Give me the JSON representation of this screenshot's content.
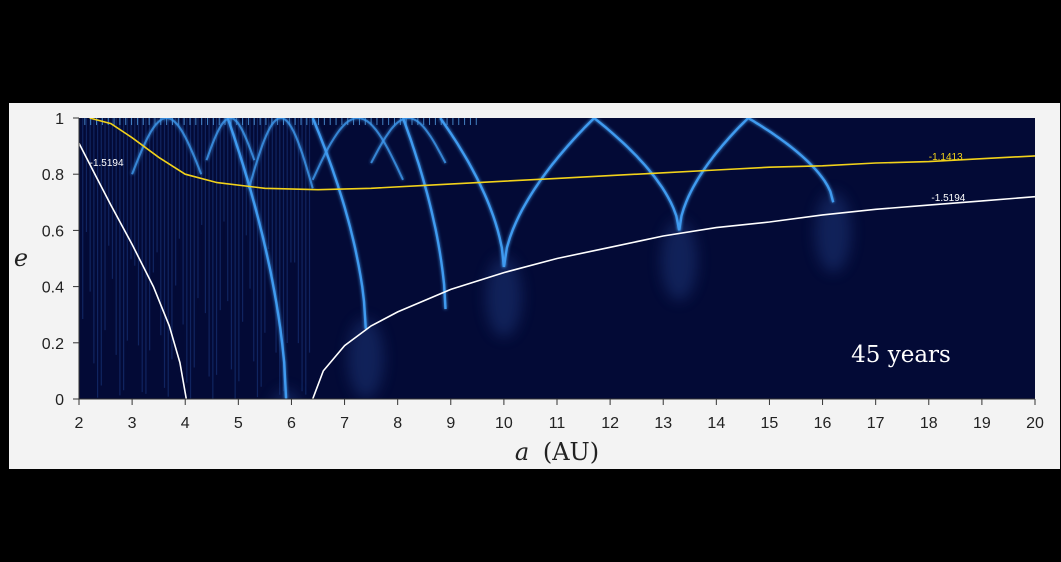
{
  "chart_data": {
    "type": "heatmap",
    "title": "",
    "xlabel_symbol": "a",
    "xlabel_unit": "(AU)",
    "ylabel": "e",
    "xlim": [
      2,
      20
    ],
    "ylim": [
      0,
      1
    ],
    "x_ticks": [
      "2",
      "3",
      "4",
      "5",
      "6",
      "7",
      "8",
      "9",
      "10",
      "11",
      "12",
      "13",
      "14",
      "15",
      "16",
      "17",
      "18",
      "19",
      "20"
    ],
    "y_ticks": [
      "0",
      "0.2",
      "0.4",
      "0.6",
      "0.8",
      "1"
    ],
    "annotation": "45 years",
    "colors": {
      "background": "#030a36",
      "resonance": "#3f9bf0",
      "contour_white": "#ffffff",
      "contour_yellow": "#f2d21a"
    },
    "contours": [
      {
        "label": "-1.5194",
        "color": "white",
        "points": [
          [
            2.0,
            0.91
          ],
          [
            2.3,
            0.8
          ],
          [
            2.6,
            0.69
          ],
          [
            3.0,
            0.55
          ],
          [
            3.4,
            0.4
          ],
          [
            3.7,
            0.26
          ],
          [
            3.9,
            0.13
          ],
          [
            4.02,
            0.0
          ]
        ]
      },
      {
        "label": "-1.5194",
        "color": "white",
        "points": [
          [
            6.4,
            0.0
          ],
          [
            6.6,
            0.1
          ],
          [
            7.0,
            0.19
          ],
          [
            7.5,
            0.26
          ],
          [
            8.0,
            0.31
          ],
          [
            9.0,
            0.39
          ],
          [
            10.0,
            0.45
          ],
          [
            11.0,
            0.5
          ],
          [
            12.0,
            0.54
          ],
          [
            13.0,
            0.58
          ],
          [
            14.0,
            0.61
          ],
          [
            15.0,
            0.63
          ],
          [
            16.0,
            0.655
          ],
          [
            17.0,
            0.675
          ],
          [
            18.0,
            0.69
          ],
          [
            19.0,
            0.705
          ],
          [
            20.0,
            0.72
          ]
        ]
      },
      {
        "label": "-1.1413",
        "color": "yellow",
        "points": [
          [
            2.2,
            1.0
          ],
          [
            2.6,
            0.98
          ],
          [
            3.0,
            0.93
          ],
          [
            3.5,
            0.86
          ],
          [
            4.0,
            0.8
          ],
          [
            4.6,
            0.77
          ],
          [
            5.5,
            0.75
          ],
          [
            6.5,
            0.745
          ],
          [
            7.5,
            0.75
          ],
          [
            8.5,
            0.76
          ],
          [
            10.0,
            0.775
          ],
          [
            11.0,
            0.785
          ],
          [
            12.0,
            0.795
          ],
          [
            13.0,
            0.805
          ],
          [
            14.0,
            0.815
          ],
          [
            15.0,
            0.825
          ],
          [
            16.0,
            0.83
          ],
          [
            17.0,
            0.84
          ],
          [
            18.0,
            0.845
          ],
          [
            19.0,
            0.855
          ],
          [
            20.0,
            0.865
          ]
        ]
      }
    ],
    "contour_label_positions": [
      {
        "text": "-1.5194",
        "a": 2.2,
        "e": 0.83
      },
      {
        "text": "-1.5194",
        "a": 18.05,
        "e": 0.705
      },
      {
        "text": "-1.1413",
        "a": 18.0,
        "e": 0.85
      }
    ],
    "resonance_ridges": [
      {
        "vertex": [
          5.9,
          0.0
        ],
        "peak": [
          4.8,
          1.0
        ]
      },
      {
        "vertex": [
          7.4,
          0.25
        ],
        "peak": [
          6.4,
          1.0
        ]
      },
      {
        "vertex": [
          8.9,
          0.32
        ],
        "peak": [
          8.1,
          1.0
        ]
      },
      {
        "vertex": [
          10.0,
          0.47
        ],
        "peak": [
          8.8,
          1.0
        ]
      },
      {
        "vertex": [
          10.0,
          0.47
        ],
        "peak": [
          11.7,
          1.0
        ]
      },
      {
        "vertex": [
          13.3,
          0.6
        ],
        "peak": [
          11.7,
          1.0
        ]
      },
      {
        "vertex": [
          13.3,
          0.6
        ],
        "peak": [
          14.6,
          1.0
        ]
      },
      {
        "vertex": [
          16.2,
          0.7
        ],
        "peak": [
          14.6,
          1.0
        ]
      }
    ],
    "resonance_arches": [
      {
        "x1": 5.2,
        "x2": 6.4,
        "e_base": 0.75,
        "e_top": 1.0
      },
      {
        "x1": 6.4,
        "x2": 8.1,
        "e_base": 0.78,
        "e_top": 1.0
      },
      {
        "x1": 7.5,
        "x2": 8.9,
        "e_base": 0.84,
        "e_top": 1.0
      },
      {
        "x1": 3.0,
        "x2": 4.3,
        "e_base": 0.8,
        "e_top": 1.0
      },
      {
        "x1": 4.4,
        "x2": 5.3,
        "e_base": 0.85,
        "e_top": 1.0
      }
    ],
    "chaotic_band": {
      "from_a": 2.0,
      "to_a": 6.4
    }
  }
}
